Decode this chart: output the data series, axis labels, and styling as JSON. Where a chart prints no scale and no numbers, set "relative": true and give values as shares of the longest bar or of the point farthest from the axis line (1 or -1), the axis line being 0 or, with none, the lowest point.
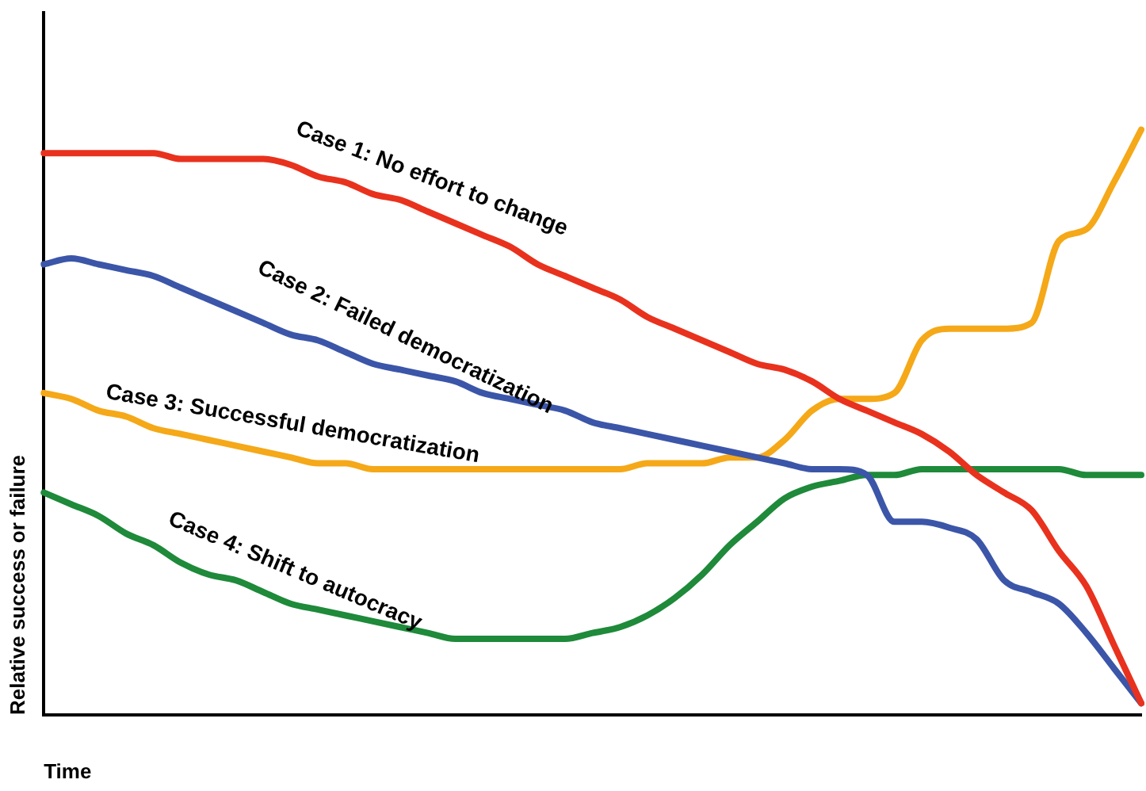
{
  "chart_data": {
    "type": "line",
    "relative": true,
    "xlabel": "Time",
    "ylabel": "Relative success or failure",
    "legend": false,
    "categories": [
      null,
      null,
      null,
      null,
      null,
      null,
      null,
      null,
      null,
      null,
      null,
      null,
      null,
      null,
      null,
      null,
      null,
      null,
      null,
      null,
      null,
      null,
      null,
      null,
      null,
      null,
      null,
      null,
      null,
      null,
      null,
      null,
      null,
      null,
      null,
      null,
      null,
      null,
      null,
      null,
      null
    ],
    "series": [
      {
        "name": "Case 1: No effort to change",
        "color": "#e8321e",
        "values": [
          0.96,
          0.96,
          0.96,
          0.96,
          0.96,
          0.95,
          0.95,
          0.95,
          0.95,
          0.94,
          0.92,
          0.91,
          0.89,
          0.88,
          0.86,
          0.84,
          0.82,
          0.8,
          0.77,
          0.75,
          0.73,
          0.71,
          0.68,
          0.66,
          0.64,
          0.62,
          0.6,
          0.59,
          0.57,
          0.54,
          0.52,
          0.5,
          0.48,
          0.45,
          0.41,
          0.38,
          0.35,
          0.28,
          0.22,
          0.12,
          0.02
        ]
      },
      {
        "name": "Case 2: Failed democratization",
        "color": "#3b56a8",
        "values": [
          0.77,
          0.78,
          0.77,
          0.76,
          0.75,
          0.73,
          0.71,
          0.69,
          0.67,
          0.65,
          0.64,
          0.62,
          0.6,
          0.59,
          0.58,
          0.57,
          0.55,
          0.54,
          0.53,
          0.52,
          0.5,
          0.49,
          0.48,
          0.47,
          0.46,
          0.45,
          0.44,
          0.43,
          0.42,
          0.42,
          0.41,
          0.33,
          0.33,
          0.32,
          0.3,
          0.23,
          0.21,
          0.19,
          0.14,
          0.08,
          0.02
        ]
      },
      {
        "name": "Case 3: Successful democratization",
        "color": "#f5a818",
        "values": [
          0.55,
          0.54,
          0.52,
          0.51,
          0.49,
          0.48,
          0.47,
          0.46,
          0.45,
          0.44,
          0.43,
          0.43,
          0.42,
          0.42,
          0.42,
          0.42,
          0.42,
          0.42,
          0.42,
          0.42,
          0.42,
          0.42,
          0.43,
          0.43,
          0.43,
          0.44,
          0.44,
          0.47,
          0.52,
          0.54,
          0.54,
          0.55,
          0.64,
          0.66,
          0.66,
          0.66,
          0.67,
          0.81,
          0.83,
          0.91,
          1
        ]
      },
      {
        "name": "Case 4: Shift to autocracy",
        "color": "#1e8a3a",
        "values": [
          0.38,
          0.36,
          0.34,
          0.31,
          0.29,
          0.26,
          0.24,
          0.23,
          0.21,
          0.19,
          0.18,
          0.17,
          0.16,
          0.15,
          0.14,
          0.13,
          0.13,
          0.13,
          0.13,
          0.13,
          0.14,
          0.15,
          0.17,
          0.2,
          0.24,
          0.29,
          0.33,
          0.37,
          0.39,
          0.4,
          0.41,
          0.41,
          0.42,
          0.42,
          0.42,
          0.42,
          0.42,
          0.42,
          0.41,
          0.41,
          0.41
        ]
      }
    ]
  }
}
